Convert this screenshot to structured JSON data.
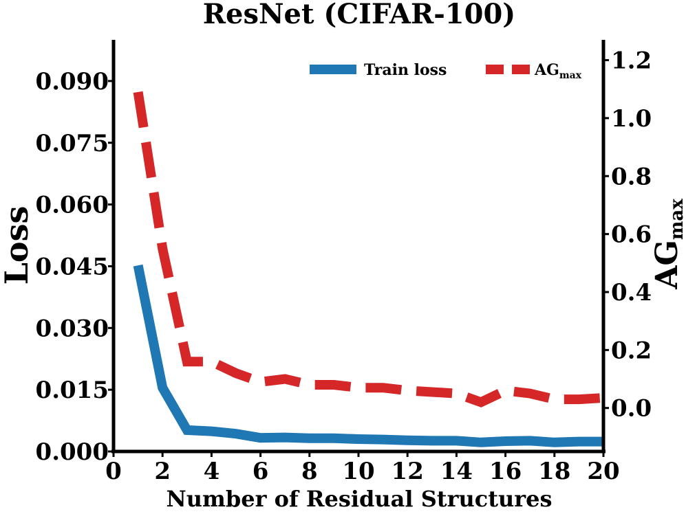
{
  "chart_data": {
    "type": "line",
    "title": "ResNet (CIFAR-100)",
    "xlabel": "Number of Residual Structures",
    "ylabel_left": "Loss",
    "ylabel_right": {
      "main": "AG",
      "sub": "max"
    },
    "xlim": [
      0,
      20
    ],
    "x_ticks": [
      "0",
      "2",
      "4",
      "6",
      "8",
      "10",
      "12",
      "14",
      "16",
      "18",
      "20"
    ],
    "ylim_left": [
      0,
      0.1
    ],
    "y_ticks_left": [
      "0.000",
      "0.015",
      "0.030",
      "0.045",
      "0.060",
      "0.075",
      "0.090"
    ],
    "ylim_right": [
      -0.15,
      1.27
    ],
    "y_ticks_right": [
      "0.0",
      "0.2",
      "0.4",
      "0.6",
      "0.8",
      "1.0",
      "1.2"
    ],
    "legend_position": "top-right",
    "grid": false,
    "series": [
      {
        "name": "Train loss",
        "axis": "left",
        "color": "#1f77b4",
        "style": "solid",
        "x": [
          1,
          2,
          3,
          4,
          5,
          6,
          7,
          8,
          9,
          10,
          11,
          12,
          13,
          14,
          15,
          16,
          17,
          18,
          19,
          20
        ],
        "values": [
          0.0452,
          0.0155,
          0.0052,
          0.0049,
          0.0043,
          0.0033,
          0.0034,
          0.0032,
          0.0032,
          0.003,
          0.0029,
          0.0027,
          0.0026,
          0.0026,
          0.0022,
          0.0025,
          0.0026,
          0.0022,
          0.0024,
          0.0024
        ]
      },
      {
        "name": "AG",
        "name_sub": "max",
        "axis": "right",
        "color": "#d62728",
        "style": "dashed",
        "x": [
          1,
          2,
          3,
          4,
          5,
          6,
          7,
          8,
          9,
          10,
          11,
          12,
          13,
          14,
          15,
          16,
          17,
          18,
          19,
          20
        ],
        "values": [
          1.09,
          0.55,
          0.16,
          0.16,
          0.12,
          0.09,
          0.1,
          0.08,
          0.08,
          0.07,
          0.07,
          0.06,
          0.055,
          0.05,
          0.02,
          0.06,
          0.05,
          0.03,
          0.03,
          0.035
        ]
      }
    ]
  }
}
